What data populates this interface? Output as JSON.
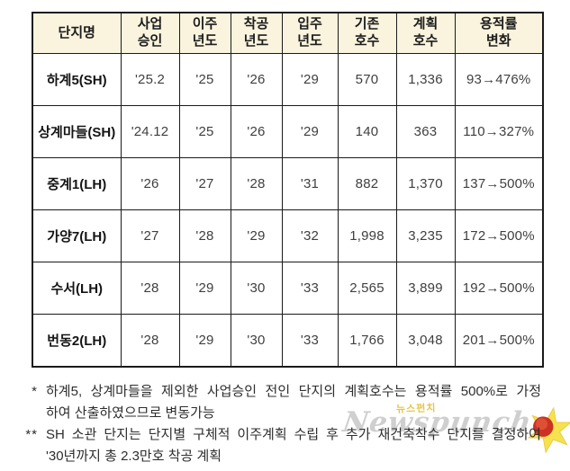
{
  "chart_data": {
    "type": "table",
    "title": "",
    "columns": [
      "단지명",
      "사업\n승인",
      "이주\n년도",
      "착공\n년도",
      "입주\n년도",
      "기존\n호수",
      "계획\n호수",
      "용적률\n변화"
    ],
    "rows": [
      [
        "하계5(SH)",
        "'25.2",
        "'25",
        "'26",
        "'29",
        "570",
        "1,336",
        "93→476%"
      ],
      [
        "상계마들(SH)",
        "'24.12",
        "'25",
        "'26",
        "'29",
        "140",
        "363",
        "110→327%"
      ],
      [
        "중계1(LH)",
        "'26",
        "'27",
        "'28",
        "'31",
        "882",
        "1,370",
        "137→500%"
      ],
      [
        "가양7(LH)",
        "'27",
        "'28",
        "'29",
        "'32",
        "1,998",
        "3,235",
        "172→500%"
      ],
      [
        "수서(LH)",
        "'28",
        "'29",
        "'30",
        "'33",
        "2,565",
        "3,899",
        "192→500%"
      ],
      [
        "번동2(LH)",
        "'28",
        "'29",
        "'30",
        "'33",
        "1,766",
        "3,048",
        "201→500%"
      ]
    ]
  },
  "footnotes": [
    {
      "marker": "*",
      "lines": [
        "하계5, 상계마들을 제외한 사업승인 전인 단지의 계획호수는 용적률 500%로 가정",
        "하여 산출하였으므로 변동가능"
      ]
    },
    {
      "marker": "**",
      "lines": [
        "SH 소관 단지는 단지별 구체적 이주계획 수립 후 추가 재건축착수 단지를 결정하여",
        "'30년까지 총 2.3만호 착공 계획"
      ]
    }
  ],
  "watermark": {
    "brand": "Newspunch",
    "brand_kr": "뉴스펀치"
  },
  "colors": {
    "header_bg": "#faf3dd",
    "border": "#1a1a1a",
    "star_yellow": "#f6e14e",
    "star_blob_red": "#cc3223",
    "watermark_gray": "#a0a0a0",
    "watermark_yellow": "#e3bf35"
  }
}
